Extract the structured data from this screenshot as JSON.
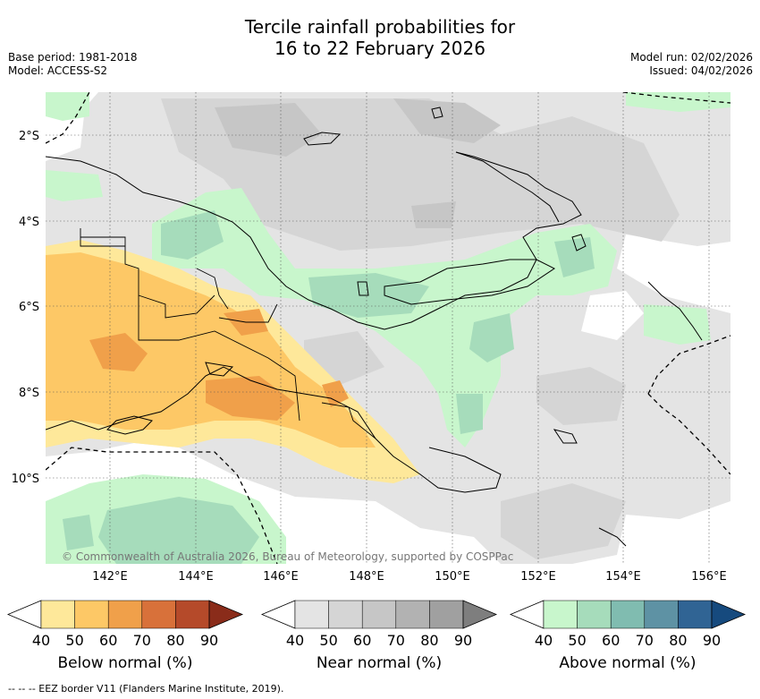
{
  "title": {
    "line1": "Tercile rainfall probabilities for",
    "line2": "16 to 22 February 2026"
  },
  "meta": {
    "base_period": "Base period: 1981-2018",
    "model": "Model: ACCESS-S2",
    "model_run": "Model run: 02/02/2026",
    "issued": "Issued: 04/02/2026"
  },
  "map": {
    "lat_labels": [
      "2°S",
      "4°S",
      "6°S",
      "8°S",
      "10°S"
    ],
    "lon_labels": [
      "142°E",
      "144°E",
      "146°E",
      "148°E",
      "150°E",
      "152°E",
      "154°E",
      "156°E"
    ],
    "copyright": "© Commonwealth of Australia 2026, Bureau of Meteorology, supported by COSPPac"
  },
  "legends": [
    {
      "label": "Below normal (%)",
      "ticks": [
        "40",
        "50",
        "60",
        "70",
        "80",
        "90"
      ],
      "colors": [
        "#ffffff",
        "#fee89a",
        "#fdc866",
        "#f0a04a",
        "#d8713a",
        "#b54a2a",
        "#8a2c1a"
      ]
    },
    {
      "label": "Near normal (%)",
      "ticks": [
        "40",
        "50",
        "60",
        "70",
        "80",
        "90"
      ],
      "colors": [
        "#ffffff",
        "#e4e4e4",
        "#d5d5d5",
        "#c6c6c6",
        "#b2b2b2",
        "#a0a0a0",
        "#7e7e7e"
      ]
    },
    {
      "label": "Above normal (%)",
      "ticks": [
        "40",
        "50",
        "60",
        "70",
        "80",
        "90"
      ],
      "colors": [
        "#ffffff",
        "#c8f6cc",
        "#a6dcbb",
        "#80bcb0",
        "#5e92a4",
        "#306494",
        "#164a7e"
      ]
    }
  ],
  "footnote": "--  --  -- EEZ border V11 (Flanders Marine Institute, 2019)."
}
